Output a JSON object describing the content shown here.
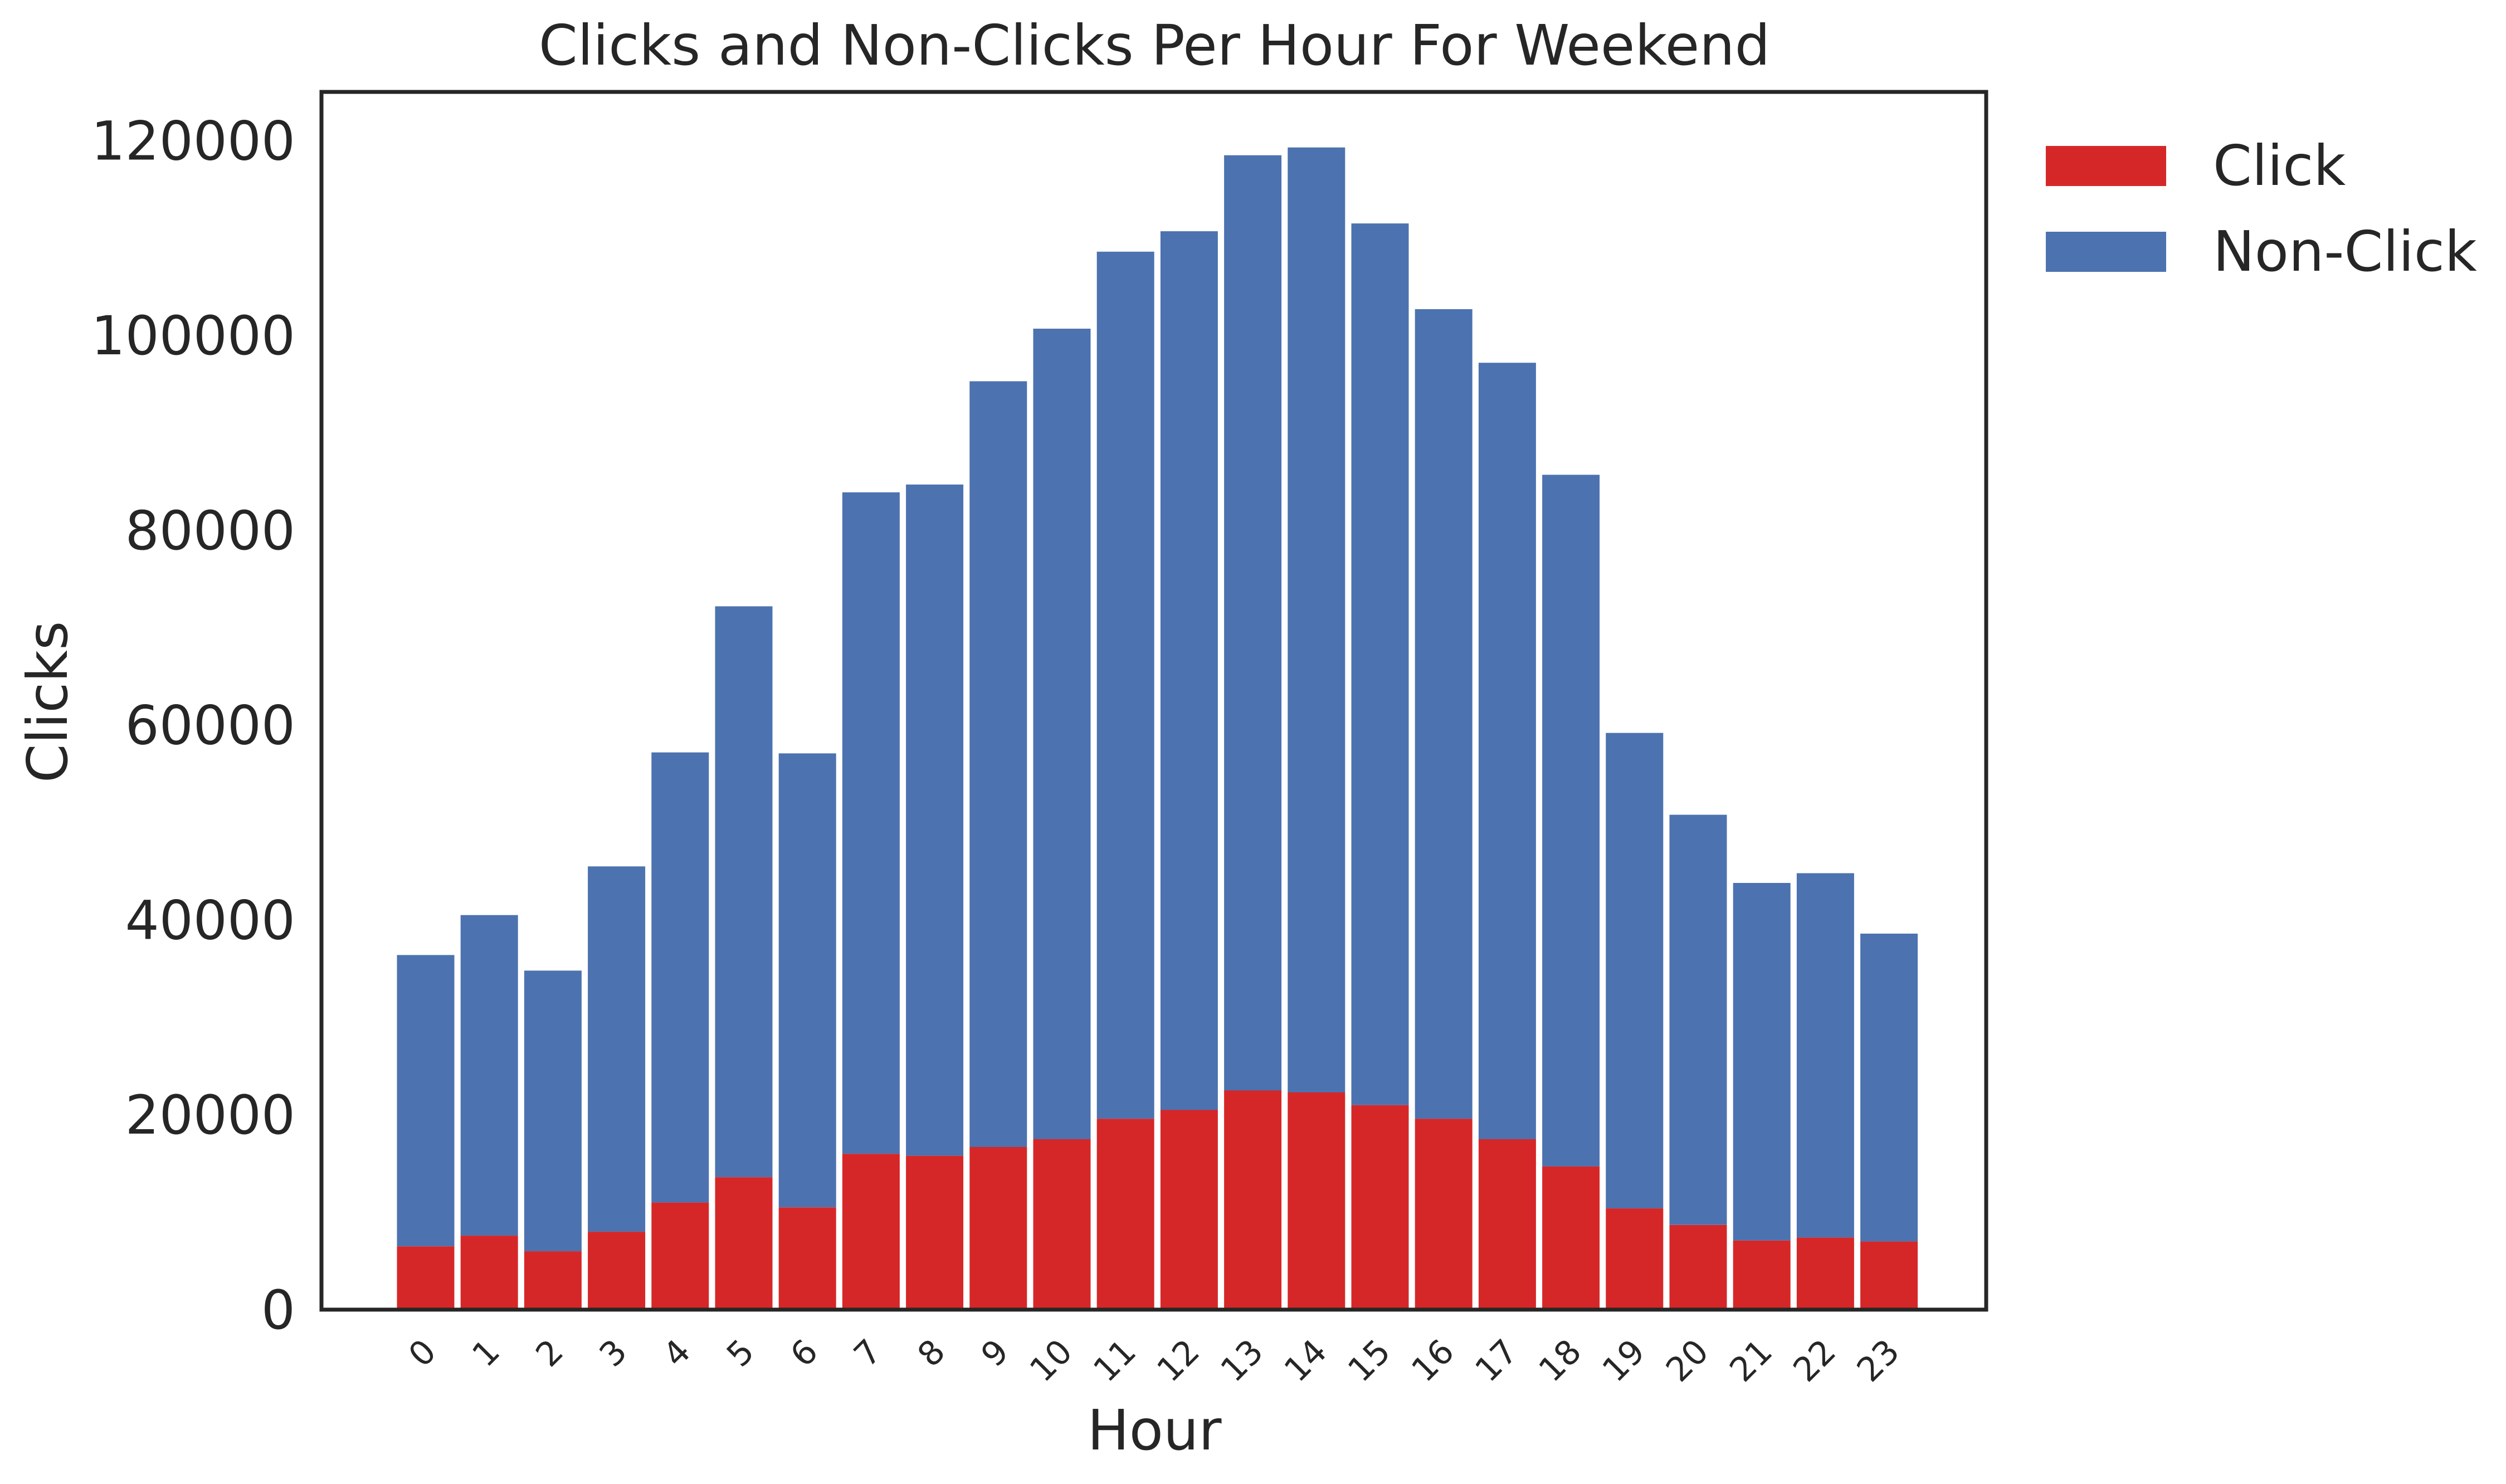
{
  "chart_data": {
    "type": "bar",
    "stacked": true,
    "title": "Clicks and Non-Clicks Per Hour For Weekend",
    "xlabel": "Hour",
    "ylabel": "Clicks",
    "ylim": [
      0,
      125000
    ],
    "yticks": [
      0,
      20000,
      40000,
      60000,
      80000,
      100000,
      120000
    ],
    "categories": [
      "0",
      "1",
      "2",
      "3",
      "4",
      "5",
      "6",
      "7",
      "8",
      "9",
      "10",
      "11",
      "12",
      "13",
      "14",
      "15",
      "16",
      "17",
      "18",
      "19",
      "20",
      "21",
      "22",
      "23"
    ],
    "series": [
      {
        "name": "Click",
        "color": "#d62728",
        "values": [
          6500,
          7600,
          6000,
          8000,
          11000,
          13600,
          10500,
          16000,
          15800,
          16700,
          17500,
          19600,
          20500,
          22500,
          22300,
          21000,
          19600,
          17500,
          14700,
          10400,
          8700,
          7100,
          7400,
          7000
        ]
      },
      {
        "name": "Non-Click",
        "color": "#4c72b0",
        "values": [
          29900,
          32900,
          28800,
          37500,
          46200,
          58600,
          46600,
          67900,
          68900,
          78600,
          83200,
          89000,
          90200,
          96000,
          97000,
          90500,
          83100,
          79700,
          71000,
          48800,
          42100,
          36700,
          37400,
          31600
        ]
      }
    ],
    "grid": false,
    "legend": "outside-top-right"
  }
}
